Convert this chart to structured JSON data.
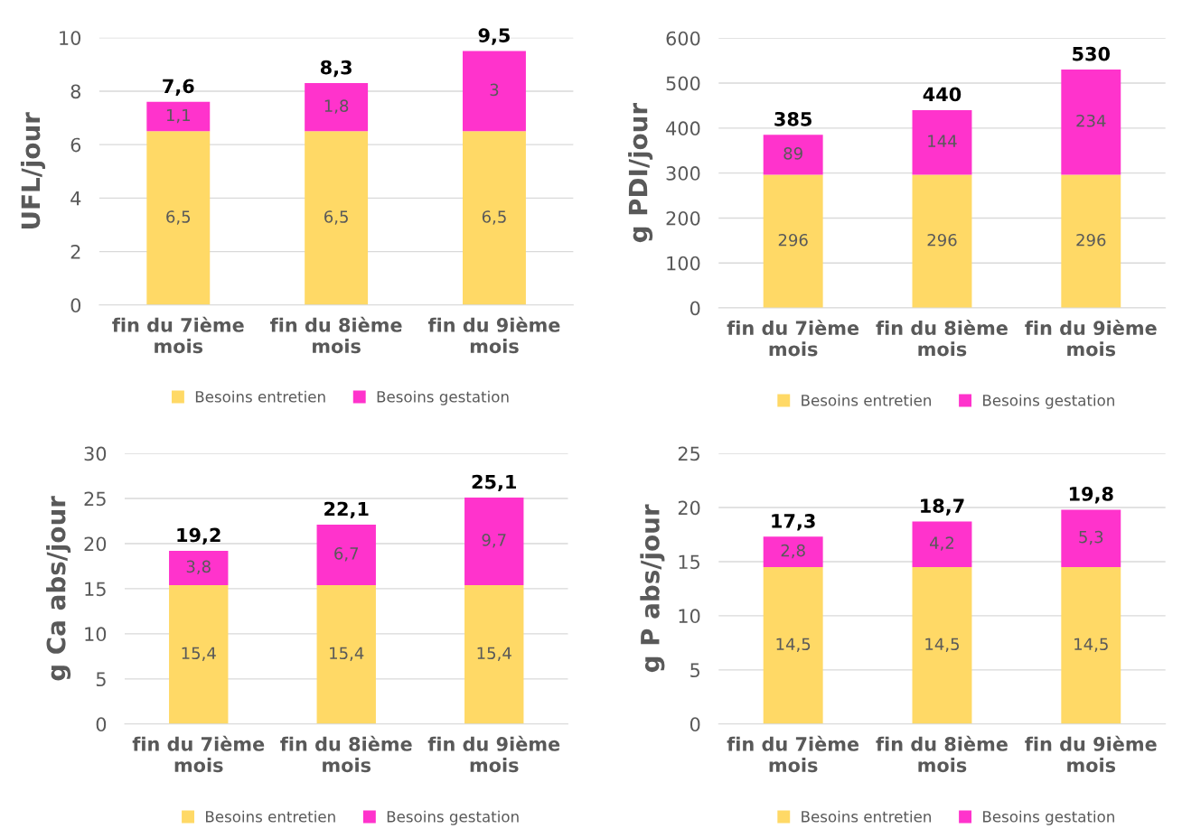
{
  "chart_data": [
    {
      "type": "bar",
      "stacked": true,
      "ylabel": "UFL/jour",
      "categories": [
        "fin du 7ième mois",
        "fin du 8ième mois",
        "fin du 9ième mois"
      ],
      "ylim": [
        0,
        10
      ],
      "yticks": [
        0,
        2,
        4,
        6,
        8,
        10
      ],
      "grid": "y",
      "legend": "bottom",
      "totals": [
        "7,6",
        "8,3",
        "9,5"
      ],
      "series": [
        {
          "name": "Besoins entretien",
          "color": "#ffd966",
          "values": [
            6.5,
            6.5,
            6.5
          ],
          "value_labels": [
            "6,5",
            "6,5",
            "6,5"
          ]
        },
        {
          "name": "Besoins gestation",
          "color": "#ff33cc",
          "values": [
            1.1,
            1.8,
            3
          ],
          "value_labels": [
            "1,1",
            "1,8",
            "3"
          ]
        }
      ]
    },
    {
      "type": "bar",
      "stacked": true,
      "ylabel": "g PDI/jour",
      "categories": [
        "fin du 7ième mois",
        "fin du 8ième mois",
        "fin du 9ième mois"
      ],
      "ylim": [
        0,
        600
      ],
      "yticks": [
        0,
        100,
        200,
        300,
        400,
        500,
        600
      ],
      "grid": "y",
      "legend": "bottom",
      "totals": [
        "385",
        "440",
        "530"
      ],
      "series": [
        {
          "name": "Besoins entretien",
          "color": "#ffd966",
          "values": [
            296,
            296,
            296
          ],
          "value_labels": [
            "296",
            "296",
            "296"
          ]
        },
        {
          "name": "Besoins gestation",
          "color": "#ff33cc",
          "values": [
            89,
            144,
            234
          ],
          "value_labels": [
            "89",
            "144",
            "234"
          ]
        }
      ]
    },
    {
      "type": "bar",
      "stacked": true,
      "ylabel": "g Ca abs/jour",
      "categories": [
        "fin du 7ième mois",
        "fin du 8ième mois",
        "fin du 9ième mois"
      ],
      "ylim": [
        0,
        30
      ],
      "yticks": [
        0,
        5,
        10,
        15,
        20,
        25,
        30
      ],
      "grid": "y",
      "legend": "bottom",
      "totals": [
        "19,2",
        "22,1",
        "25,1"
      ],
      "series": [
        {
          "name": "Besoins entretien",
          "color": "#ffd966",
          "values": [
            15.4,
            15.4,
            15.4
          ],
          "value_labels": [
            "15,4",
            "15,4",
            "15,4"
          ]
        },
        {
          "name": "Besoins gestation",
          "color": "#ff33cc",
          "values": [
            3.8,
            6.7,
            9.7
          ],
          "value_labels": [
            "3,8",
            "6,7",
            "9,7"
          ]
        }
      ]
    },
    {
      "type": "bar",
      "stacked": true,
      "ylabel": "g P abs/jour",
      "categories": [
        "fin du 7ième mois",
        "fin du 8ième mois",
        "fin du 9ième mois"
      ],
      "ylim": [
        0,
        25
      ],
      "yticks": [
        0,
        5,
        10,
        15,
        20,
        25
      ],
      "grid": "y",
      "legend": "bottom",
      "totals": [
        "17,3",
        "18,7",
        "19,8"
      ],
      "series": [
        {
          "name": "Besoins entretien",
          "color": "#ffd966",
          "values": [
            14.5,
            14.5,
            14.5
          ],
          "value_labels": [
            "14,5",
            "14,5",
            "14,5"
          ]
        },
        {
          "name": "Besoins gestation",
          "color": "#ff33cc",
          "values": [
            2.8,
            4.2,
            5.3
          ],
          "value_labels": [
            "2,8",
            "4,2",
            "5,3"
          ]
        }
      ]
    }
  ]
}
